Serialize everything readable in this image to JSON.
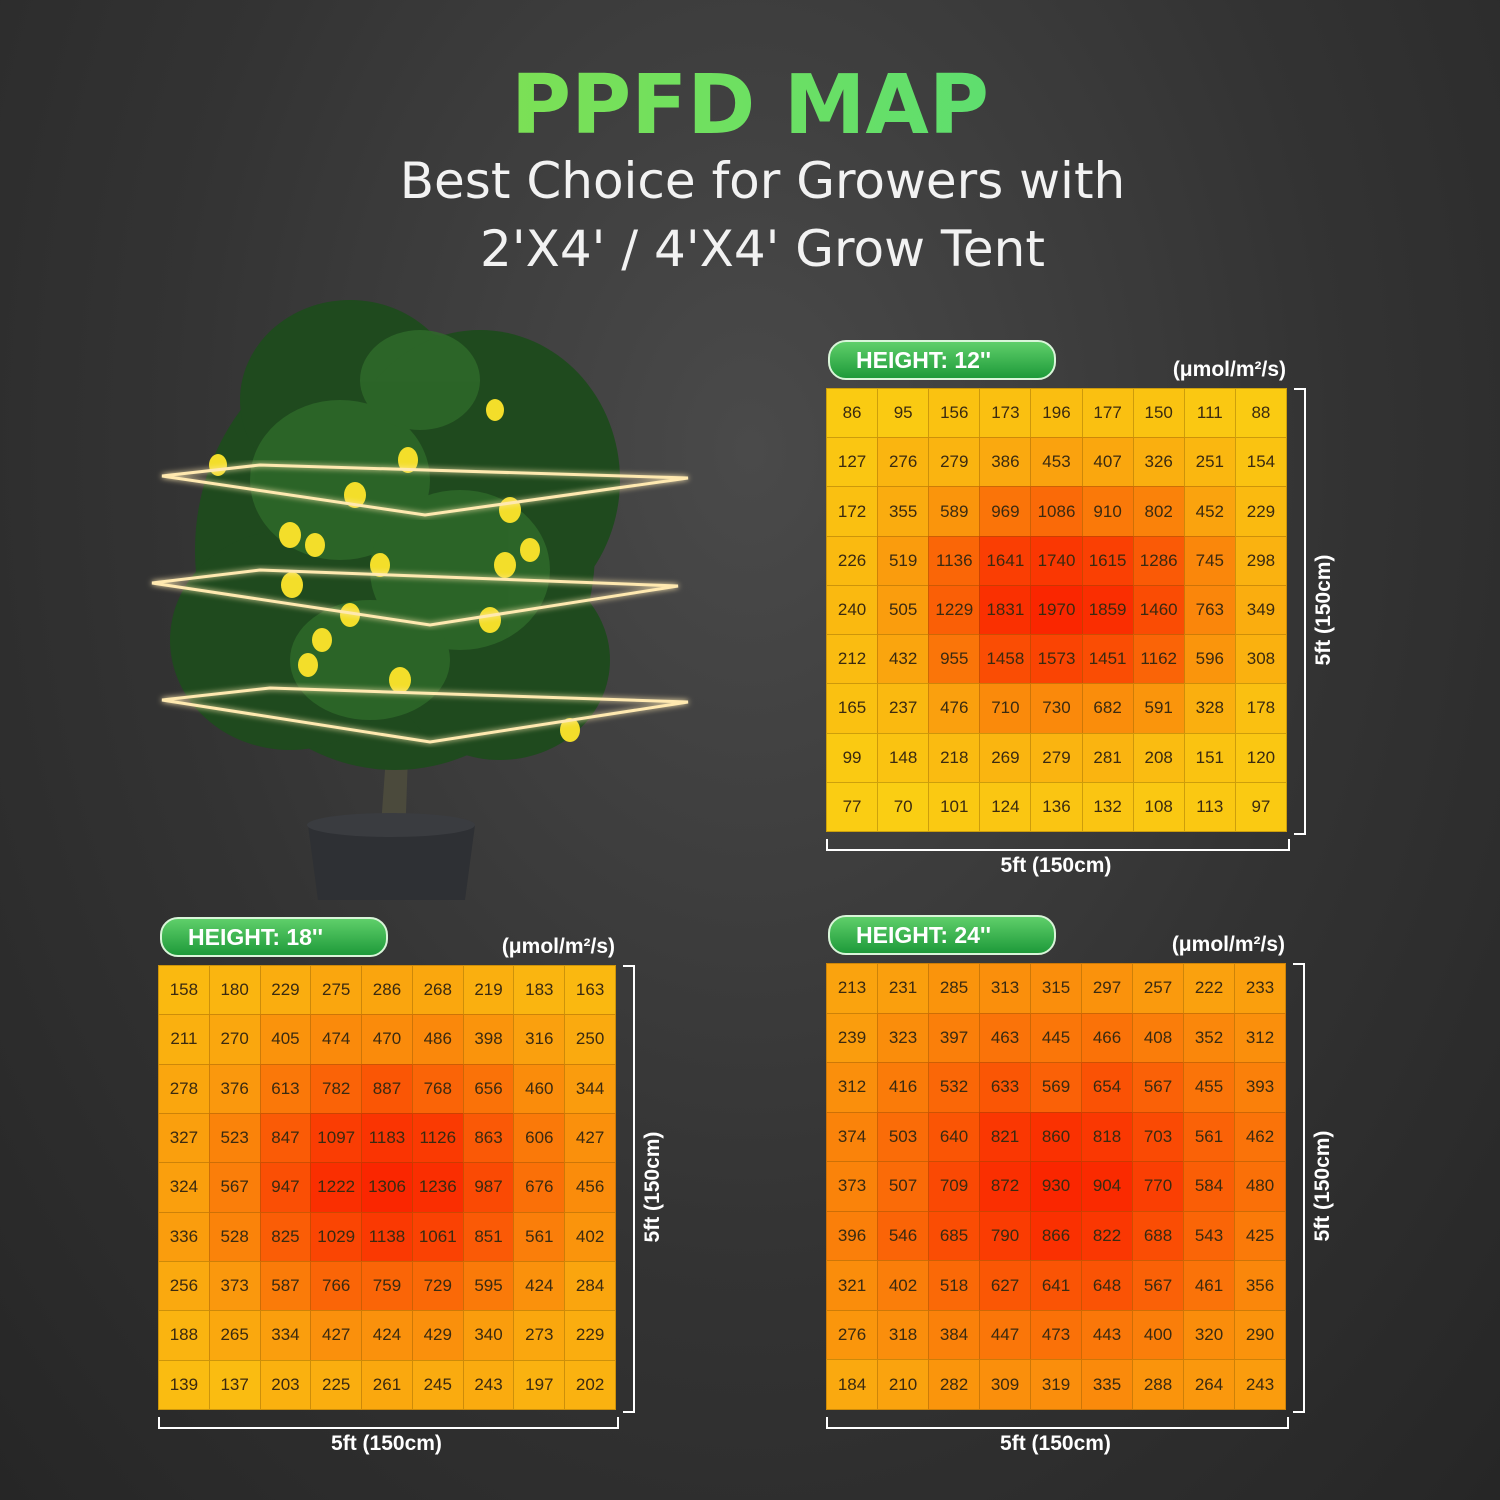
{
  "header": {
    "title": "PPFD MAP",
    "subtitle_lines": [
      "Best Choice for Growers with",
      "2'X4' / 4'X4' Grow Tent"
    ]
  },
  "maps": [
    {
      "height": "HEIGHT: 12''",
      "unit": "(μmol/m²/s)",
      "width_label": "5ft (150cm)",
      "depth_label": "5ft (150cm)",
      "rows": [
        [
          86,
          95,
          156,
          173,
          196,
          177,
          150,
          111,
          88
        ],
        [
          127,
          276,
          279,
          386,
          453,
          407,
          326,
          251,
          154
        ],
        [
          172,
          355,
          589,
          969,
          1086,
          910,
          802,
          452,
          229
        ],
        [
          226,
          519,
          1136,
          1641,
          1740,
          1615,
          1286,
          745,
          298
        ],
        [
          240,
          505,
          1229,
          1831,
          1970,
          1859,
          1460,
          763,
          349
        ],
        [
          212,
          432,
          955,
          1458,
          1573,
          1451,
          1162,
          596,
          308
        ],
        [
          165,
          237,
          476,
          710,
          730,
          682,
          591,
          328,
          178
        ],
        [
          99,
          148,
          218,
          269,
          279,
          281,
          208,
          151,
          120
        ],
        [
          77,
          70,
          101,
          124,
          136,
          132,
          108,
          113,
          97
        ]
      ]
    },
    {
      "height": "HEIGHT: 18''",
      "unit": "(μmol/m²/s)",
      "width_label": "5ft (150cm)",
      "depth_label": "5ft (150cm)",
      "rows": [
        [
          158,
          180,
          229,
          275,
          286,
          268,
          219,
          183,
          163
        ],
        [
          211,
          270,
          405,
          474,
          470,
          486,
          398,
          316,
          250
        ],
        [
          278,
          376,
          613,
          782,
          887,
          768,
          656,
          460,
          344
        ],
        [
          327,
          523,
          847,
          1097,
          1183,
          1126,
          863,
          606,
          427
        ],
        [
          324,
          567,
          947,
          1222,
          1306,
          1236,
          987,
          676,
          456
        ],
        [
          336,
          528,
          825,
          1029,
          1138,
          1061,
          851,
          561,
          402
        ],
        [
          256,
          373,
          587,
          766,
          759,
          729,
          595,
          424,
          284
        ],
        [
          188,
          265,
          334,
          427,
          424,
          429,
          340,
          273,
          229
        ],
        [
          139,
          137,
          203,
          225,
          261,
          245,
          243,
          197,
          202
        ]
      ]
    },
    {
      "height": "HEIGHT: 24''",
      "unit": "(μmol/m²/s)",
      "width_label": "5ft (150cm)",
      "depth_label": "5ft (150cm)",
      "rows": [
        [
          213,
          231,
          285,
          313,
          315,
          297,
          257,
          222,
          233
        ],
        [
          239,
          323,
          397,
          463,
          445,
          466,
          408,
          352,
          312
        ],
        [
          312,
          416,
          532,
          633,
          569,
          654,
          567,
          455,
          393
        ],
        [
          374,
          503,
          640,
          821,
          860,
          818,
          703,
          561,
          462
        ],
        [
          373,
          507,
          709,
          872,
          930,
          904,
          770,
          584,
          480
        ],
        [
          396,
          546,
          685,
          790,
          866,
          822,
          688,
          543,
          425
        ],
        [
          321,
          402,
          518,
          627,
          641,
          648,
          567,
          461,
          356
        ],
        [
          276,
          318,
          384,
          447,
          473,
          443,
          400,
          320,
          290
        ],
        [
          184,
          210,
          282,
          309,
          319,
          335,
          288,
          264,
          243
        ]
      ]
    }
  ]
}
